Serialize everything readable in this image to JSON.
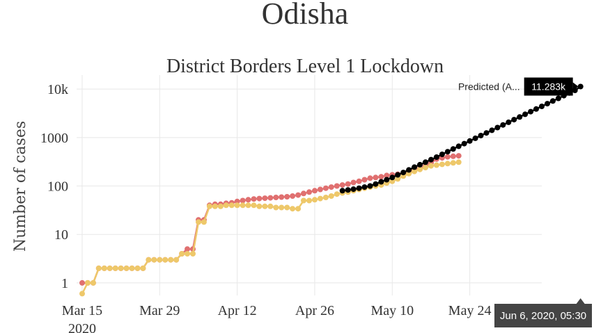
{
  "page": {
    "title": "Odisha"
  },
  "chart_data": {
    "type": "line",
    "title": "District Borders Level 1 Lockdown",
    "xlabel": "",
    "ylabel": "Number of cases",
    "y_scale": "log",
    "ylim": [
      0.55,
      14000
    ],
    "xlim": [
      "2020-03-14",
      "2020-06-06"
    ],
    "grid": true,
    "y_ticks": [
      {
        "value": 1,
        "label": "1"
      },
      {
        "value": 10,
        "label": "10"
      },
      {
        "value": 100,
        "label": "100"
      },
      {
        "value": 1000,
        "label": "1000"
      },
      {
        "value": 10000,
        "label": "10k"
      }
    ],
    "x_ticks": [
      {
        "date": "2020-03-15",
        "label": "Mar 15",
        "sublabel": "2020"
      },
      {
        "date": "2020-03-29",
        "label": "Mar 29",
        "sublabel": ""
      },
      {
        "date": "2020-04-12",
        "label": "Apr 12",
        "sublabel": ""
      },
      {
        "date": "2020-04-26",
        "label": "Apr 26",
        "sublabel": ""
      },
      {
        "date": "2020-05-10",
        "label": "May 10",
        "sublabel": ""
      },
      {
        "date": "2020-05-24",
        "label": "May 24",
        "sublabel": ""
      }
    ],
    "series": [
      {
        "color": "#e07070",
        "start_date": "2020-03-15",
        "values": [
          1,
          1,
          1,
          2,
          2,
          2,
          2,
          2,
          2,
          2,
          2,
          2,
          3,
          3,
          3,
          3,
          3,
          3,
          4,
          5,
          5,
          20,
          20,
          40,
          42,
          42,
          44,
          45,
          48,
          50,
          52,
          54,
          55,
          56,
          57,
          58,
          59,
          60,
          62,
          65,
          70,
          75,
          80,
          85,
          90,
          95,
          100,
          105,
          110,
          118,
          125,
          135,
          145,
          150,
          155,
          165,
          170,
          175,
          180,
          195,
          210,
          230,
          260,
          300,
          360,
          380,
          400,
          410,
          420
        ]
      },
      {
        "color": "#eec86a",
        "start_date": "2020-03-15",
        "values": [
          0.6,
          1,
          1,
          2,
          2,
          2,
          2,
          2,
          2,
          2,
          2,
          2,
          3,
          3,
          3,
          3,
          3,
          3,
          4,
          4,
          4,
          18,
          18,
          38,
          38,
          38,
          40,
          40,
          40,
          40,
          40,
          40,
          38,
          38,
          38,
          36,
          36,
          36,
          34,
          34,
          50,
          50,
          52,
          55,
          58,
          62,
          68,
          72,
          75,
          80,
          85,
          90,
          95,
          100,
          105,
          115,
          125,
          140,
          160,
          180,
          200,
          220,
          240,
          260,
          270,
          280,
          290,
          300,
          310
        ]
      },
      {
        "name": "Predicted",
        "color": "#000000",
        "start_date": "2020-05-01",
        "values": [
          80,
          83,
          86,
          90,
          95,
          100,
          110,
          122,
          135,
          150,
          170,
          190,
          215,
          245,
          275,
          310,
          350,
          395,
          450,
          510,
          580,
          660,
          750,
          850,
          965,
          1100,
          1245,
          1415,
          1605,
          1820,
          2065,
          2345,
          2660,
          3020,
          3425,
          3890,
          4410,
          5005,
          5680,
          6445,
          7315,
          8300,
          9430,
          11283
        ]
      }
    ],
    "hover": {
      "series": "Predicted",
      "label": "Predicted (A...",
      "value": "11.283k",
      "date": "Jun 6, 2020, 05:30"
    }
  }
}
